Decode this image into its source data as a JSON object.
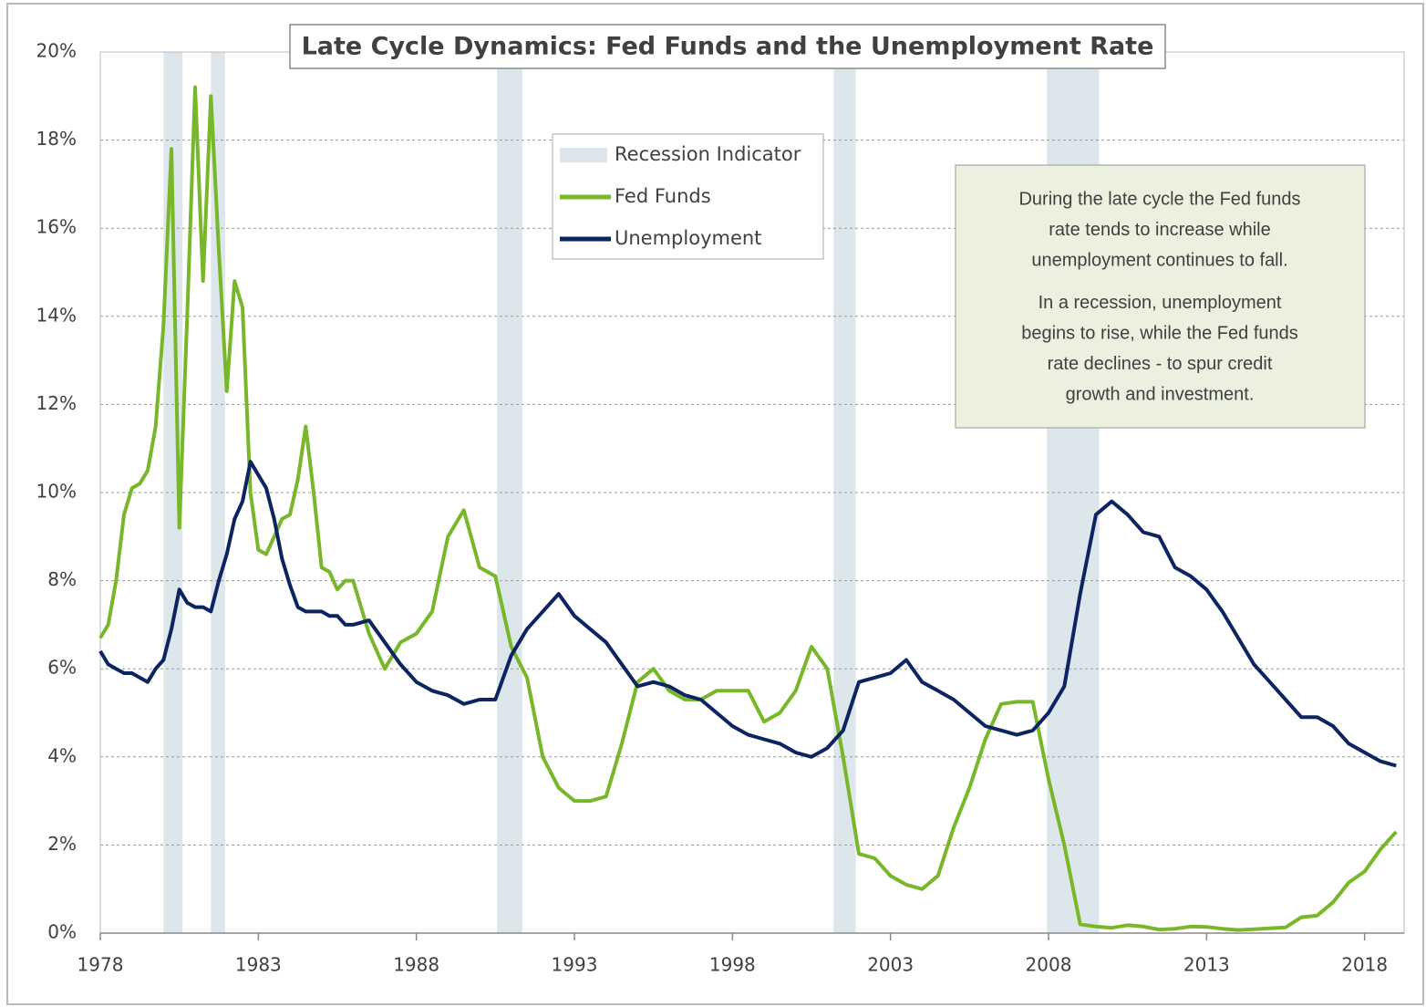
{
  "chart_data": {
    "type": "line",
    "title": "Late Cycle Dynamics: Fed Funds and the Unemployment Rate",
    "x": [
      1978.0,
      1978.25,
      1978.5,
      1978.75,
      1979.0,
      1979.25,
      1979.5,
      1979.75,
      1980.0,
      1980.25,
      1980.5,
      1980.75,
      1981.0,
      1981.25,
      1981.5,
      1981.75,
      1982.0,
      1982.25,
      1982.5,
      1982.75,
      1983.0,
      1983.25,
      1983.5,
      1983.75,
      1984.0,
      1984.25,
      1984.5,
      1984.75,
      1985.0,
      1985.25,
      1985.5,
      1985.75,
      1986.0,
      1986.5,
      1987.0,
      1987.5,
      1988.0,
      1988.5,
      1989.0,
      1989.5,
      1990.0,
      1990.5,
      1991.0,
      1991.5,
      1992.0,
      1992.5,
      1993.0,
      1993.5,
      1994.0,
      1994.5,
      1995.0,
      1995.5,
      1996.0,
      1996.5,
      1997.0,
      1997.5,
      1998.0,
      1998.5,
      1999.0,
      1999.5,
      2000.0,
      2000.5,
      2001.0,
      2001.5,
      2002.0,
      2002.5,
      2003.0,
      2003.5,
      2004.0,
      2004.5,
      2005.0,
      2005.5,
      2006.0,
      2006.5,
      2007.0,
      2007.5,
      2008.0,
      2008.5,
      2009.0,
      2009.5,
      2010.0,
      2010.5,
      2011.0,
      2011.5,
      2012.0,
      2012.5,
      2013.0,
      2013.5,
      2014.0,
      2014.5,
      2015.0,
      2015.5,
      2016.0,
      2016.5,
      2017.0,
      2017.5,
      2018.0,
      2018.5,
      2019.0
    ],
    "series": [
      {
        "name": "Fed Funds",
        "color": "#78b72a",
        "values": [
          6.7,
          7.0,
          8.0,
          9.5,
          10.1,
          10.2,
          10.5,
          11.5,
          13.8,
          17.8,
          9.2,
          14.0,
          19.2,
          14.8,
          19.0,
          15.5,
          12.3,
          14.8,
          14.2,
          10.0,
          8.7,
          8.6,
          9.0,
          9.4,
          9.5,
          10.3,
          11.5,
          10.0,
          8.3,
          8.2,
          7.8,
          8.0,
          8.0,
          6.8,
          6.0,
          6.6,
          6.8,
          7.3,
          9.0,
          9.6,
          8.3,
          8.1,
          6.5,
          5.8,
          4.0,
          3.3,
          3.0,
          3.0,
          3.1,
          4.3,
          5.7,
          6.0,
          5.5,
          5.3,
          5.3,
          5.5,
          5.5,
          5.5,
          4.8,
          5.0,
          5.5,
          6.5,
          6.0,
          4.0,
          1.8,
          1.7,
          1.3,
          1.1,
          1.0,
          1.3,
          2.4,
          3.3,
          4.4,
          5.2,
          5.25,
          5.25,
          3.5,
          2.0,
          0.2,
          0.15,
          0.12,
          0.18,
          0.15,
          0.08,
          0.1,
          0.15,
          0.14,
          0.1,
          0.07,
          0.09,
          0.11,
          0.13,
          0.36,
          0.4,
          0.7,
          1.15,
          1.4,
          1.9,
          2.3
        ]
      },
      {
        "name": "Unemployment",
        "color": "#0c2461",
        "values": [
          6.4,
          6.1,
          6.0,
          5.9,
          5.9,
          5.8,
          5.7,
          6.0,
          6.2,
          6.9,
          7.8,
          7.5,
          7.4,
          7.4,
          7.3,
          8.0,
          8.6,
          9.4,
          9.8,
          10.7,
          10.4,
          10.1,
          9.4,
          8.5,
          7.9,
          7.4,
          7.3,
          7.3,
          7.3,
          7.2,
          7.2,
          7.0,
          7.0,
          7.1,
          6.6,
          6.1,
          5.7,
          5.5,
          5.4,
          5.2,
          5.3,
          5.3,
          6.3,
          6.9,
          7.3,
          7.7,
          7.2,
          6.9,
          6.6,
          6.1,
          5.6,
          5.7,
          5.6,
          5.4,
          5.3,
          5.0,
          4.7,
          4.5,
          4.4,
          4.3,
          4.1,
          4.0,
          4.2,
          4.6,
          5.7,
          5.8,
          5.9,
          6.2,
          5.7,
          5.5,
          5.3,
          5.0,
          4.7,
          4.6,
          4.5,
          4.6,
          5.0,
          5.6,
          7.7,
          9.5,
          9.8,
          9.5,
          9.1,
          9.0,
          8.3,
          8.1,
          7.8,
          7.3,
          6.7,
          6.1,
          5.7,
          5.3,
          4.9,
          4.9,
          4.7,
          4.3,
          4.1,
          3.9,
          3.8
        ]
      }
    ],
    "recessions": {
      "name": "Recession Indicator",
      "color": "#dde6ea",
      "spans": [
        [
          1980.0,
          1980.6
        ],
        [
          1981.5,
          1981.95
        ],
        [
          1990.55,
          1991.35
        ],
        [
          2001.2,
          2001.9
        ],
        [
          2007.95,
          2009.6
        ]
      ]
    },
    "xlim": [
      1978,
      2019.25
    ],
    "xticks": [
      1978,
      1983,
      1988,
      1993,
      1998,
      2003,
      2008,
      2013,
      2018
    ],
    "ylim": [
      0,
      20
    ],
    "yticks": [
      {
        "value": 0,
        "label": "0%"
      },
      {
        "value": 2,
        "label": "2%"
      },
      {
        "value": 4,
        "label": "4%"
      },
      {
        "value": 6,
        "label": "6%"
      },
      {
        "value": 8,
        "label": "8%"
      },
      {
        "value": 10,
        "label": "10%"
      },
      {
        "value": 12,
        "label": "12%"
      },
      {
        "value": 14,
        "label": "14%"
      },
      {
        "value": 16,
        "label": "16%"
      },
      {
        "value": 18,
        "label": "18%"
      },
      {
        "value": 20,
        "label": "20%"
      }
    ],
    "grid": true,
    "annotations": [
      [
        "During the late cycle the Fed funds",
        "rate tends to increase while",
        "unemployment continues to fall."
      ],
      [
        "In a recession, unemployment",
        "begins to rise, while the Fed funds",
        "rate declines -  to spur credit",
        "growth and investment."
      ]
    ]
  }
}
